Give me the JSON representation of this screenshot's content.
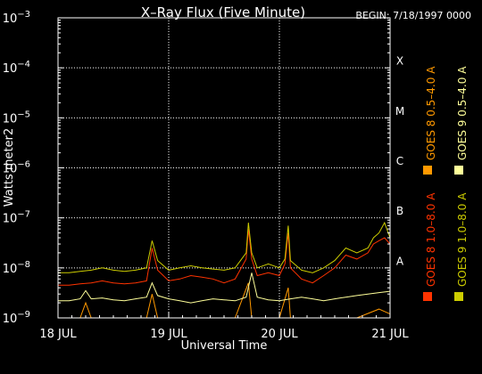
{
  "chart_data": {
    "type": "line",
    "title": "X–Ray Flux (Five Minute)",
    "begin_label": "BEGIN: 7/18/1997 0000",
    "xlabel": "Universal Time",
    "ylabel": "Watts meter2",
    "x_tick_labels": [
      "18 JUL",
      "19 JUL",
      "20 JUL",
      "21 JUL"
    ],
    "x_range_days": [
      0,
      3
    ],
    "y_scale": "log",
    "y_range": [
      1e-09,
      0.001
    ],
    "y_tick_labels": [
      {
        "base": "10",
        "exp": "−9"
      },
      {
        "base": "10",
        "exp": "−8"
      },
      {
        "base": "10",
        "exp": "−7"
      },
      {
        "base": "10",
        "exp": "−6"
      },
      {
        "base": "10",
        "exp": "−5"
      },
      {
        "base": "10",
        "exp": "−4"
      },
      {
        "base": "10",
        "exp": "−3"
      }
    ],
    "flare_classes": [
      "A",
      "B",
      "C",
      "M",
      "X"
    ],
    "grid": true,
    "legend_placement": "right",
    "series": [
      {
        "name": "GOES 8 1.0–8.0 A",
        "color": "#ff3300",
        "x": [
          0,
          0.1,
          0.2,
          0.3,
          0.4,
          0.5,
          0.6,
          0.7,
          0.8,
          0.85,
          0.9,
          1.0,
          1.1,
          1.2,
          1.3,
          1.4,
          1.5,
          1.6,
          1.7,
          1.72,
          1.75,
          1.8,
          1.9,
          2.0,
          2.05,
          2.08,
          2.1,
          2.2,
          2.3,
          2.4,
          2.5,
          2.6,
          2.7,
          2.8,
          2.85,
          2.9,
          2.95,
          3.0
        ],
        "y": [
          4.5e-09,
          4.5e-09,
          4.8e-09,
          5e-09,
          5.5e-09,
          5e-09,
          4.8e-09,
          5e-09,
          5.5e-09,
          2.5e-08,
          9e-09,
          5.5e-09,
          6e-09,
          7e-09,
          6.5e-09,
          6e-09,
          5e-09,
          6e-09,
          1.5e-08,
          6e-08,
          1.5e-08,
          7e-09,
          8e-09,
          7e-09,
          1.2e-08,
          5e-08,
          1e-08,
          6e-09,
          5e-09,
          7e-09,
          1e-08,
          1.8e-08,
          1.5e-08,
          2e-08,
          3e-08,
          3.5e-08,
          4e-08,
          3e-08
        ]
      },
      {
        "name": "GOES 8 0.5–4.0 A",
        "color": "#ff9900",
        "x": [
          0,
          0.2,
          0.25,
          0.3,
          0.4,
          0.5,
          0.7,
          0.8,
          0.85,
          0.9,
          1.0,
          1.2,
          1.4,
          1.5,
          1.6,
          1.72,
          1.75,
          1.8,
          2.0,
          2.08,
          2.1,
          2.3,
          2.5,
          2.7,
          2.9,
          3.0
        ],
        "y": [
          1e-09,
          1e-09,
          2e-09,
          1e-09,
          1e-09,
          1e-09,
          1e-09,
          1e-09,
          3e-09,
          1e-09,
          1e-09,
          1e-09,
          1e-09,
          1e-09,
          1e-09,
          5e-09,
          1e-09,
          1e-09,
          1e-09,
          4e-09,
          1e-09,
          1e-09,
          1e-09,
          1e-09,
          1.5e-09,
          1.2e-09
        ]
      },
      {
        "name": "GOES 9 1.0–8.0 A",
        "color": "#cccc00",
        "x": [
          0,
          0.1,
          0.2,
          0.3,
          0.4,
          0.5,
          0.6,
          0.7,
          0.8,
          0.85,
          0.9,
          1.0,
          1.1,
          1.2,
          1.3,
          1.4,
          1.5,
          1.6,
          1.7,
          1.72,
          1.75,
          1.8,
          1.9,
          2.0,
          2.05,
          2.08,
          2.1,
          2.2,
          2.3,
          2.4,
          2.5,
          2.6,
          2.7,
          2.8,
          2.85,
          2.9,
          2.95,
          3.0
        ],
        "y": [
          8e-09,
          8e-09,
          8.5e-09,
          9e-09,
          1e-08,
          9e-09,
          8.5e-09,
          9e-09,
          1e-08,
          3.5e-08,
          1.4e-08,
          9e-09,
          1e-08,
          1.1e-08,
          1e-08,
          9.5e-09,
          9e-09,
          1e-08,
          2e-08,
          8e-08,
          2e-08,
          1e-08,
          1.2e-08,
          1e-08,
          1.5e-08,
          7e-08,
          1.4e-08,
          9e-09,
          8e-09,
          1e-08,
          1.4e-08,
          2.5e-08,
          2e-08,
          2.5e-08,
          4e-08,
          5e-08,
          8e-08,
          4e-08
        ]
      },
      {
        "name": "GOES 9 0.5–4.0 A",
        "color": "#ffff99",
        "x": [
          0,
          0.1,
          0.2,
          0.25,
          0.3,
          0.4,
          0.5,
          0.6,
          0.7,
          0.8,
          0.85,
          0.9,
          1.0,
          1.1,
          1.2,
          1.3,
          1.4,
          1.5,
          1.6,
          1.7,
          1.75,
          1.8,
          1.9,
          2.0,
          2.1,
          2.2,
          2.3,
          2.4,
          2.5,
          2.6,
          2.7,
          2.8,
          2.9,
          3.0
        ],
        "y": [
          2.2e-09,
          2.2e-09,
          2.4e-09,
          3.5e-09,
          2.4e-09,
          2.5e-09,
          2.3e-09,
          2.2e-09,
          2.4e-09,
          2.6e-09,
          5e-09,
          2.8e-09,
          2.4e-09,
          2.2e-09,
          2e-09,
          2.2e-09,
          2.4e-09,
          2.3e-09,
          2.2e-09,
          2.6e-09,
          8e-09,
          2.6e-09,
          2.3e-09,
          2.2e-09,
          2.4e-09,
          2.6e-09,
          2.4e-09,
          2.2e-09,
          2.4e-09,
          2.6e-09,
          2.8e-09,
          3e-09,
          3.2e-09,
          3.4e-09
        ]
      }
    ]
  }
}
